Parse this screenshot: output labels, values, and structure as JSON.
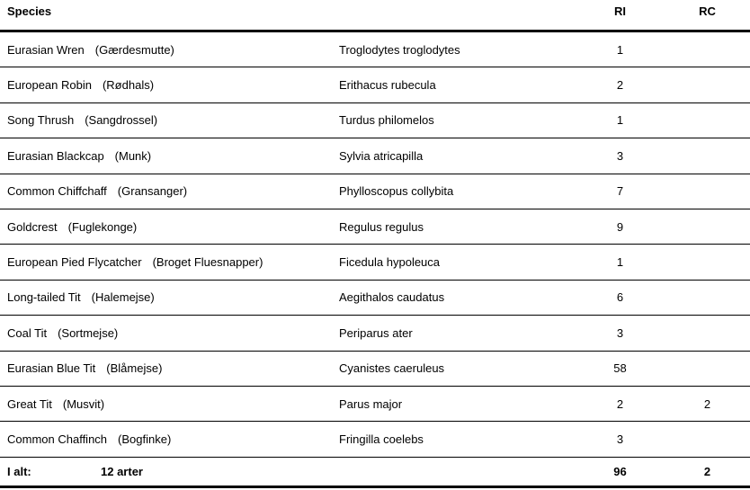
{
  "table": {
    "columns": {
      "species_header": "Species",
      "ri_header": "RI",
      "rc_header": "RC"
    },
    "rows": [
      {
        "english": "Eurasian Wren",
        "danish": "(Gærdesmutte)",
        "scientific": "Troglodytes troglodytes",
        "ri": "1",
        "rc": ""
      },
      {
        "english": "European Robin",
        "danish": "(Rødhals)",
        "scientific": "Erithacus rubecula",
        "ri": "2",
        "rc": ""
      },
      {
        "english": "Song Thrush",
        "danish": "(Sangdrossel)",
        "scientific": "Turdus philomelos",
        "ri": "1",
        "rc": ""
      },
      {
        "english": "Eurasian Blackcap",
        "danish": "(Munk)",
        "scientific": "Sylvia atricapilla",
        "ri": "3",
        "rc": ""
      },
      {
        "english": "Common Chiffchaff",
        "danish": "(Gransanger)",
        "scientific": "Phylloscopus collybita",
        "ri": "7",
        "rc": ""
      },
      {
        "english": "Goldcrest",
        "danish": "(Fuglekonge)",
        "scientific": "Regulus regulus",
        "ri": "9",
        "rc": ""
      },
      {
        "english": "European Pied Flycatcher",
        "danish": "(Broget Fluesnapper)",
        "scientific": "Ficedula hypoleuca",
        "ri": "1",
        "rc": ""
      },
      {
        "english": "Long-tailed Tit",
        "danish": "(Halemejse)",
        "scientific": "Aegithalos caudatus",
        "ri": "6",
        "rc": ""
      },
      {
        "english": "Coal Tit",
        "danish": "(Sortmejse)",
        "scientific": "Periparus ater",
        "ri": "3",
        "rc": ""
      },
      {
        "english": "Eurasian Blue Tit",
        "danish": "(Blåmejse)",
        "scientific": "Cyanistes caeruleus",
        "ri": "58",
        "rc": ""
      },
      {
        "english": "Great Tit",
        "danish": "(Musvit)",
        "scientific": "Parus major",
        "ri": "2",
        "rc": "2"
      },
      {
        "english": "Common Chaffinch",
        "danish": "(Bogfinke)",
        "scientific": "Fringilla coelebs",
        "ri": "3",
        "rc": ""
      }
    ],
    "footer": {
      "label": "I alt:",
      "species_count": "12 arter",
      "ri_total": "96",
      "rc_total": "2"
    }
  },
  "colors": {
    "text": "#000000",
    "background": "#ffffff",
    "line": "#000000"
  }
}
